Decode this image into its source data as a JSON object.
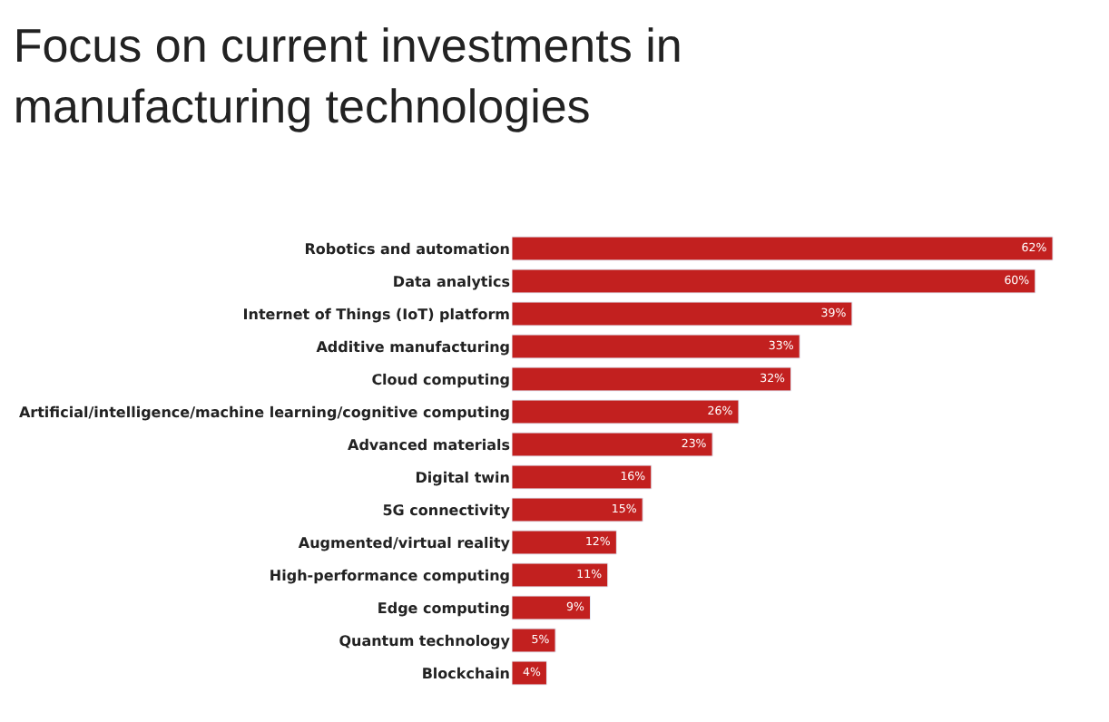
{
  "chart_data": {
    "type": "bar",
    "orientation": "horizontal",
    "title": "Focus on current investments in\nmanufacturing technologies",
    "categories": [
      "Robotics and automation",
      "Data analytics",
      "Internet of Things (IoT) platform",
      "Additive manufacturing",
      "Cloud computing",
      "Artificial/intelligence/machine learning/cognitive computing",
      "Advanced materials",
      "Digital twin",
      "5G connectivity",
      "Augmented/virtual reality",
      "High-performance computing",
      "Edge computing",
      "Quantum technology",
      "Blockchain"
    ],
    "values": [
      62,
      60,
      39,
      33,
      32,
      26,
      23,
      16,
      15,
      12,
      11,
      9,
      5,
      4
    ],
    "value_labels": [
      "62%",
      "60%",
      "39%",
      "33%",
      "32%",
      "26%",
      "23%",
      "16%",
      "15%",
      "12%",
      "11%",
      "9%",
      "5%",
      "4%"
    ],
    "color": "#c2201f"
  }
}
